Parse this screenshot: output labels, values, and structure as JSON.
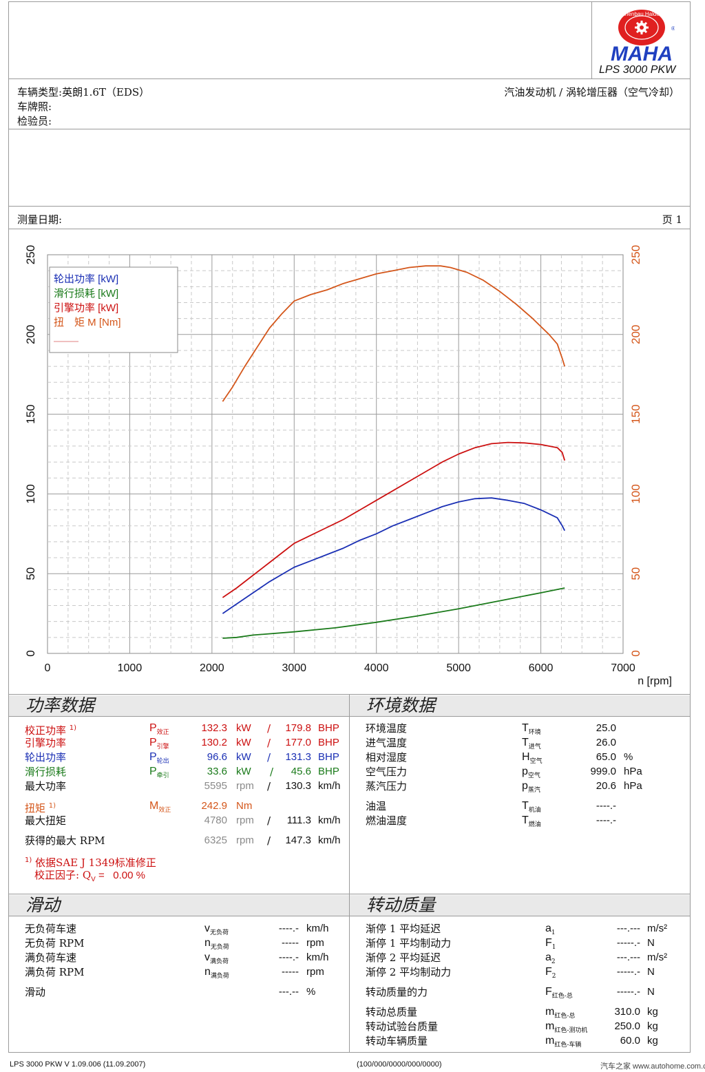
{
  "header": {
    "logo_text": "MAHA",
    "logo_ring_text": "Maschinenbau Haldenwang",
    "model": "LPS 3000 PKW"
  },
  "vehicle": {
    "type_label": "车辆类型:",
    "type_value": "英朗1.6T（EDS）",
    "plate_label": "车牌照:",
    "inspector_label": "检验员:",
    "engine_desc": "汽油发动机 / 涡轮增压器（空气冷却）"
  },
  "measure": {
    "date_label": "测量日期:",
    "page_label": "页 1"
  },
  "chart_data": {
    "type": "line",
    "xlabel": "n [rpm]",
    "xlim": [
      0,
      7000
    ],
    "ylim": [
      0,
      250
    ],
    "x_ticks": [
      "0",
      "1000",
      "2000",
      "3000",
      "4000",
      "5000",
      "6000",
      "7000"
    ],
    "y_ticks": [
      "0",
      "50",
      "100",
      "150",
      "200",
      "250"
    ],
    "grid": true,
    "legend_placement": "top-left",
    "series": [
      {
        "name": "轮出功率 [kW]",
        "color": "#1a2fb4",
        "points": [
          [
            2130,
            25
          ],
          [
            2300,
            31
          ],
          [
            2500,
            38
          ],
          [
            2700,
            45
          ],
          [
            2900,
            51
          ],
          [
            3000,
            54
          ],
          [
            3200,
            58
          ],
          [
            3400,
            62
          ],
          [
            3600,
            66
          ],
          [
            3800,
            71
          ],
          [
            4000,
            75
          ],
          [
            4200,
            80
          ],
          [
            4400,
            84
          ],
          [
            4600,
            88
          ],
          [
            4800,
            92
          ],
          [
            5000,
            95
          ],
          [
            5200,
            97
          ],
          [
            5400,
            97.5
          ],
          [
            5600,
            96
          ],
          [
            5800,
            94
          ],
          [
            6000,
            90
          ],
          [
            6200,
            85
          ],
          [
            6260,
            80
          ],
          [
            6290,
            77
          ]
        ]
      },
      {
        "name": "滑行损耗 [kW]",
        "color": "#1a7a1a",
        "points": [
          [
            2130,
            9.5
          ],
          [
            2300,
            10
          ],
          [
            2500,
            11.5
          ],
          [
            3000,
            13.5
          ],
          [
            3500,
            16
          ],
          [
            4000,
            19.5
          ],
          [
            4500,
            23.5
          ],
          [
            5000,
            28
          ],
          [
            5500,
            33
          ],
          [
            6000,
            38
          ],
          [
            6290,
            41
          ]
        ]
      },
      {
        "name": "引擎功率 [kW]",
        "color": "#cc1010",
        "points": [
          [
            2130,
            35
          ],
          [
            2300,
            41
          ],
          [
            2500,
            49
          ],
          [
            2700,
            57
          ],
          [
            2900,
            65
          ],
          [
            3000,
            69
          ],
          [
            3200,
            74
          ],
          [
            3400,
            79
          ],
          [
            3600,
            84
          ],
          [
            3800,
            90
          ],
          [
            4000,
            96
          ],
          [
            4200,
            102
          ],
          [
            4400,
            108
          ],
          [
            4600,
            114
          ],
          [
            4800,
            120
          ],
          [
            5000,
            125
          ],
          [
            5200,
            129
          ],
          [
            5400,
            131.5
          ],
          [
            5600,
            132.3
          ],
          [
            5800,
            132
          ],
          [
            6000,
            131
          ],
          [
            6200,
            129
          ],
          [
            6260,
            126
          ],
          [
            6290,
            121
          ]
        ]
      },
      {
        "name": "扭　矩 M [Nm]",
        "color": "#d4561a",
        "points": [
          [
            2130,
            158
          ],
          [
            2250,
            167
          ],
          [
            2400,
            180
          ],
          [
            2550,
            192
          ],
          [
            2700,
            204
          ],
          [
            2850,
            213
          ],
          [
            3000,
            221
          ],
          [
            3200,
            225
          ],
          [
            3400,
            228
          ],
          [
            3600,
            232
          ],
          [
            3800,
            235
          ],
          [
            4000,
            238
          ],
          [
            4200,
            240
          ],
          [
            4400,
            242
          ],
          [
            4600,
            243
          ],
          [
            4780,
            243
          ],
          [
            4900,
            242
          ],
          [
            5100,
            239
          ],
          [
            5300,
            234
          ],
          [
            5500,
            227
          ],
          [
            5700,
            219
          ],
          [
            5900,
            210
          ],
          [
            6100,
            200
          ],
          [
            6200,
            194
          ],
          [
            6260,
            185
          ],
          [
            6290,
            180
          ]
        ]
      }
    ]
  },
  "power": {
    "title": "功率数据",
    "corrected": {
      "label": "校正功率",
      "note": "1)",
      "sym": "P",
      "sub": "效正",
      "kw": "132.3",
      "kw_unit": "kW",
      "sep": "/",
      "bhp": "179.8",
      "bhp_unit": "BHP"
    },
    "engine": {
      "label": "引擎功率",
      "sym": "P",
      "sub": "引擎",
      "kw": "130.2",
      "kw_unit": "kW",
      "sep": "/",
      "bhp": "177.0",
      "bhp_unit": "BHP"
    },
    "wheel": {
      "label": "轮出功率",
      "sym": "P",
      "sub": "轮出",
      "kw": "96.6",
      "kw_unit": "kW",
      "sep": "/",
      "bhp": "131.3",
      "bhp_unit": "BHP"
    },
    "drag": {
      "label": "滑行损耗",
      "sym": "P",
      "sub": "牵引",
      "kw": "33.6",
      "kw_unit": "kW",
      "sep": "/",
      "bhp": "45.6",
      "bhp_unit": "BHP"
    },
    "max_power": {
      "label": "最大功率",
      "rpm": "5595",
      "rpm_unit": "rpm",
      "sep": "/",
      "speed": "130.3",
      "speed_unit": "km/h"
    },
    "torque": {
      "label": "扭矩",
      "note": "1)",
      "sym": "M",
      "sub": "效正",
      "value": "242.9",
      "unit": "Nm"
    },
    "max_torque": {
      "label": "最大扭矩",
      "rpm": "4780",
      "rpm_unit": "rpm",
      "sep": "/",
      "speed": "111.3",
      "speed_unit": "km/h"
    },
    "max_rpm": {
      "label": "获得的最大 RPM",
      "rpm": "6325",
      "rpm_unit": "rpm",
      "sep": "/",
      "speed": "147.3",
      "speed_unit": "km/h"
    },
    "footnote_mark": "1)",
    "footnote": "依据SAE J 1349标准修正",
    "factor_label": "校正因子: Q",
    "factor_sub": "V",
    "factor_eq": " =",
    "factor_value": "0.00 %"
  },
  "env": {
    "title": "环境数据",
    "rows": [
      {
        "label": "环境温度",
        "sym": "T",
        "sub": "环境",
        "value": "25.0",
        "unit": ""
      },
      {
        "label": "进气温度",
        "sym": "T",
        "sub": "进气",
        "value": "26.0",
        "unit": ""
      },
      {
        "label": "相对湿度",
        "sym": "H",
        "sub": "空气",
        "value": "65.0",
        "unit": "%"
      },
      {
        "label": "空气压力",
        "sym": "p",
        "sub": "空气",
        "value": "999.0",
        "unit": "hPa"
      },
      {
        "label": "蒸汽压力",
        "sym": "p",
        "sub": "蒸汽",
        "value": "20.6",
        "unit": "hPa"
      },
      {
        "label": "油温",
        "sym": "T",
        "sub": "机油",
        "value": "----.-",
        "unit": ""
      },
      {
        "label": "燃油温度",
        "sym": "T",
        "sub": "燃油",
        "value": "----.-",
        "unit": ""
      }
    ]
  },
  "slip": {
    "title": "滑动",
    "rows": [
      {
        "label": "无负荷车速",
        "sym": "v",
        "sub": "无负荷",
        "value": "----.-",
        "unit": "km/h"
      },
      {
        "label": "无负荷 RPM",
        "sym": "n",
        "sub": "无负荷",
        "value": "-----",
        "unit": "rpm"
      },
      {
        "label": "满负荷车速",
        "sym": "v",
        "sub": "满负荷",
        "value": "----.-",
        "unit": "km/h"
      },
      {
        "label": "满负荷 RPM",
        "sym": "n",
        "sub": "满负荷",
        "value": "-----",
        "unit": "rpm"
      },
      {
        "label": "滑动",
        "sym": "",
        "sub": "",
        "value": "---.--",
        "unit": "%"
      }
    ]
  },
  "inertia": {
    "title": "转动质量",
    "rows": [
      {
        "label": "渐停 1 平均延迟",
        "sym": "a",
        "sub": "1",
        "value": "---.---",
        "unit": "m/s²"
      },
      {
        "label": "渐停 1 平均制动力",
        "sym": "F",
        "sub": "1",
        "value": "-----.-",
        "unit": "N"
      },
      {
        "label": "渐停 2 平均延迟",
        "sym": "a",
        "sub": "2",
        "value": "---.---",
        "unit": "m/s²"
      },
      {
        "label": "渐停 2 平均制动力",
        "sym": "F",
        "sub": "2",
        "value": "-----.-",
        "unit": "N"
      },
      {
        "label": "转动质量的力",
        "sym": "F",
        "sub": "红色-总",
        "value": "-----.-",
        "unit": "N"
      },
      {
        "label": "转动总质量",
        "sym": "m",
        "sub": "红色-总",
        "value": "310.0",
        "unit": "kg"
      },
      {
        "label": "转动试验台质量",
        "sym": "m",
        "sub": "红色-测功机",
        "value": "250.0",
        "unit": "kg"
      },
      {
        "label": "转动车辆质量",
        "sym": "m",
        "sub": "红色-车辆",
        "value": "60.0",
        "unit": "kg"
      }
    ]
  },
  "footer": {
    "version": "LPS 3000 PKW V 1.09.006 (11.09.2007)",
    "code": "(100/000/0000/000/0000)",
    "watermark": "汽车之家 www.autohome.com.cn"
  }
}
